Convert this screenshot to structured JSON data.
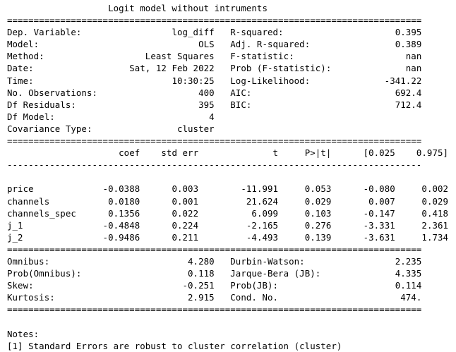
{
  "title": "Logit model without intruments",
  "rule_double": "==============================================================================",
  "rule_single": "------------------------------------------------------------------------------",
  "header_rows": [
    {
      "l_label": "Dep. Variable:",
      "l_value": "log_diff",
      "r_label": "R-squared:",
      "r_value": "0.395"
    },
    {
      "l_label": "Model:",
      "l_value": "OLS",
      "r_label": "Adj. R-squared:",
      "r_value": "0.389"
    },
    {
      "l_label": "Method:",
      "l_value": "Least Squares",
      "r_label": "F-statistic:",
      "r_value": "nan"
    },
    {
      "l_label": "Date:",
      "l_value": "Sat, 12 Feb 2022",
      "r_label": "Prob (F-statistic):",
      "r_value": "nan"
    },
    {
      "l_label": "Time:",
      "l_value": "10:30:25",
      "r_label": "Log-Likelihood:",
      "r_value": "-341.22"
    },
    {
      "l_label": "No. Observations:",
      "l_value": "400",
      "r_label": "AIC:",
      "r_value": "692.4"
    },
    {
      "l_label": "Df Residuals:",
      "l_value": "395",
      "r_label": "BIC:",
      "r_value": "712.4"
    },
    {
      "l_label": "Df Model:",
      "l_value": "4",
      "r_label": "",
      "r_value": ""
    },
    {
      "l_label": "Covariance Type:",
      "l_value": "cluster",
      "r_label": "",
      "r_value": ""
    }
  ],
  "coef_columns": [
    "coef",
    "std err",
    "t",
    "P>|t|",
    "[0.025",
    "0.975]"
  ],
  "coef_rows": [
    {
      "name": "price",
      "coef": "-0.0388",
      "std_err": "0.003",
      "t": "-11.991",
      "p": "0.053",
      "lo": "-0.080",
      "hi": "0.002"
    },
    {
      "name": "channels",
      "coef": "0.0180",
      "std_err": "0.001",
      "t": "21.624",
      "p": "0.029",
      "lo": "0.007",
      "hi": "0.029"
    },
    {
      "name": "channels_spec",
      "coef": "0.1356",
      "std_err": "0.022",
      "t": "6.099",
      "p": "0.103",
      "lo": "-0.147",
      "hi": "0.418"
    },
    {
      "name": "j_1",
      "coef": "-0.4848",
      "std_err": "0.224",
      "t": "-2.165",
      "p": "0.276",
      "lo": "-3.331",
      "hi": "2.361"
    },
    {
      "name": "j_2",
      "coef": "-0.9486",
      "std_err": "0.211",
      "t": "-4.493",
      "p": "0.139",
      "lo": "-3.631",
      "hi": "1.734"
    }
  ],
  "diag_rows": [
    {
      "l_label": "Omnibus:",
      "l_value": "4.280",
      "r_label": "Durbin-Watson:",
      "r_value": "2.235"
    },
    {
      "l_label": "Prob(Omnibus):",
      "l_value": "0.118",
      "r_label": "Jarque-Bera (JB):",
      "r_value": "4.335"
    },
    {
      "l_label": "Skew:",
      "l_value": "-0.251",
      "r_label": "Prob(JB):",
      "r_value": "0.114"
    },
    {
      "l_label": "Kurtosis:",
      "l_value": "2.915",
      "r_label": "Cond. No.",
      "r_value": "474."
    }
  ],
  "notes_heading": "Notes:",
  "notes": [
    "[1] Standard Errors are robust to cluster correlation (cluster)"
  ]
}
